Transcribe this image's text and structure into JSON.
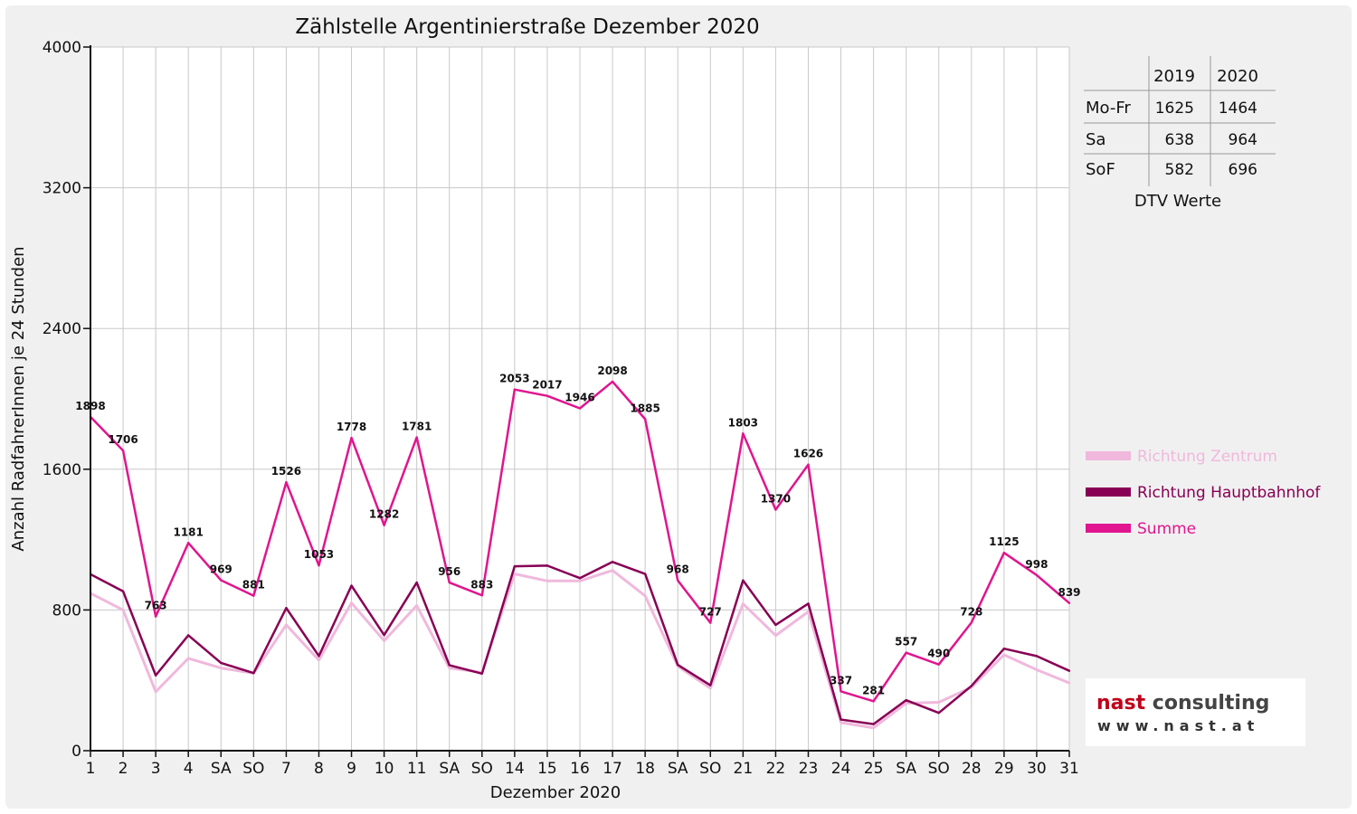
{
  "chart_data": {
    "type": "line",
    "title": "Zählstelle Argentinierstraße Dezember 2020",
    "xlabel": "Dezember 2020",
    "ylabel": "Anzahl RadfahrerInnen je 24 Stunden",
    "ylim": [
      0,
      4000
    ],
    "yticks": [
      "0",
      "800",
      "1600",
      "2400",
      "3200",
      "4000"
    ],
    "grid": true,
    "legend_position": "right",
    "categories": [
      "1",
      "2",
      "3",
      "4",
      "SA",
      "SO",
      "7",
      "8",
      "9",
      "10",
      "11",
      "SA",
      "SO",
      "14",
      "15",
      "16",
      "17",
      "18",
      "SA",
      "SO",
      "21",
      "22",
      "23",
      "24",
      "25",
      "SA",
      "SO",
      "28",
      "29",
      "30",
      "31"
    ],
    "category_colors": [
      "#111111",
      "#111111",
      "#111111",
      "#111111",
      "#111111",
      "#e00000",
      "#111111",
      "#e00000",
      "#111111",
      "#111111",
      "#111111",
      "#111111",
      "#e00000",
      "#111111",
      "#111111",
      "#111111",
      "#111111",
      "#111111",
      "#111111",
      "#e00000",
      "#111111",
      "#111111",
      "#111111",
      "#111111",
      "#e00000",
      "#111111",
      "#e00000",
      "#111111",
      "#111111",
      "#111111",
      "#111111"
    ],
    "series": [
      {
        "name": "Richtung Zentrum",
        "color": "#f0b8dc",
        "values": [
          895,
          800,
          335,
          525,
          470,
          440,
          715,
          515,
          840,
          625,
          825,
          470,
          445,
          1005,
          965,
          965,
          1025,
          880,
          480,
          355,
          835,
          655,
          790,
          160,
          130,
          270,
          275,
          360,
          545,
          460,
          385
        ]
      },
      {
        "name": "Richtung Hauptbahnhof",
        "color": "#880055",
        "values": [
          1003,
          906,
          428,
          656,
          499,
          441,
          811,
          538,
          938,
          657,
          956,
          486,
          438,
          1048,
          1052,
          981,
          1073,
          1005,
          488,
          372,
          968,
          715,
          836,
          177,
          151,
          287,
          215,
          368,
          580,
          538,
          454
        ]
      },
      {
        "name": "Summe",
        "color": "#e0158f",
        "values": [
          1898,
          1706,
          763,
          1181,
          969,
          881,
          1526,
          1053,
          1778,
          1282,
          1781,
          956,
          883,
          2053,
          2017,
          1946,
          2098,
          1885,
          968,
          727,
          1803,
          1370,
          1626,
          337,
          281,
          557,
          490,
          728,
          1125,
          998,
          839
        ]
      }
    ],
    "data_labels": [
      "1898",
      "1706",
      "763",
      "1181",
      "969",
      "881",
      "1526",
      "1053",
      "1778",
      "1282",
      "1781",
      "956",
      "883",
      "2053",
      "2017",
      "1946",
      "2098",
      "1885",
      "968",
      "727",
      "1803",
      "1370",
      "1626",
      "337",
      "281",
      "557",
      "490",
      "728",
      "1125",
      "998",
      "839"
    ]
  },
  "dtv_table": {
    "caption": "DTV Werte",
    "headers": [
      "",
      "2019",
      "2020"
    ],
    "rows": [
      {
        "label": "Mo-Fr",
        "v2019": "1625",
        "v2020": "1464"
      },
      {
        "label": "Sa",
        "v2019": "638",
        "v2020": "964"
      },
      {
        "label": "SoF",
        "v2019": "582",
        "v2020": "696"
      }
    ]
  },
  "logo": {
    "main_left": "nast",
    "main_right": " consulting",
    "sub": "www.nast.at",
    "color_left": "#c0001a",
    "color_right": "#444444"
  }
}
